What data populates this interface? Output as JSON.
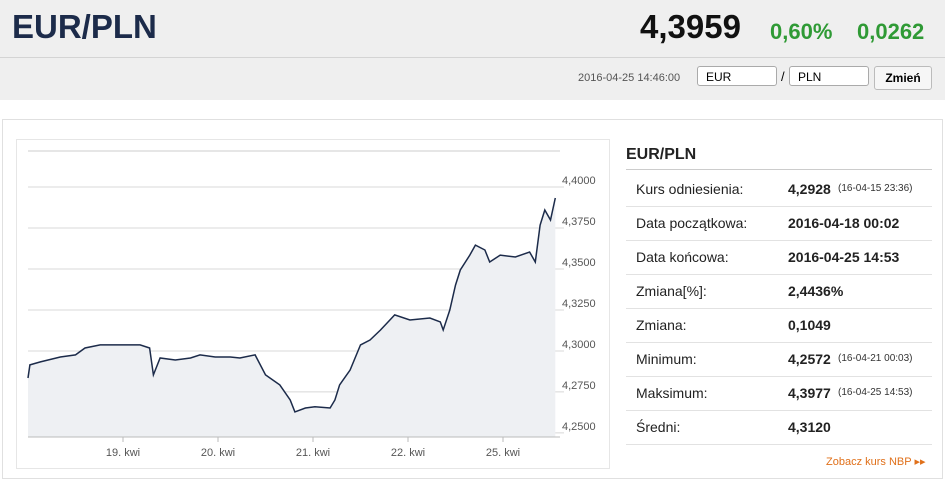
{
  "header": {
    "pair": "EUR/PLN",
    "rate": "4,3959",
    "change_pct": "0,60%",
    "change": "0,0262",
    "timestamp": "2016-04-25 14:46:00",
    "from": "EUR",
    "separator": "/",
    "to": "PLN",
    "button": "Zmień"
  },
  "chart": {
    "type": "line",
    "color": "#1c2b4a",
    "x": [
      0,
      0.02,
      0.13,
      0.34,
      0.5,
      0.6,
      0.76,
      0.97,
      1.18,
      1.28,
      1.32,
      1.39,
      1.55,
      1.71,
      1.81,
      1.97,
      2.13,
      2.23,
      2.39,
      2.5,
      2.65,
      2.76,
      2.81,
      2.92,
      3.02,
      3.18,
      3.23,
      3.28,
      3.39,
      3.5,
      3.6,
      3.71,
      3.81,
      3.86,
      4.02,
      4.23,
      4.34,
      4.37,
      4.44,
      4.5,
      4.55,
      4.65,
      4.71,
      4.81,
      4.86,
      4.97,
      5.13,
      5.28,
      5.34,
      5.39,
      5.44,
      5.5,
      5.55
    ],
    "values": [
      4.2835,
      4.2915,
      4.2933,
      4.2963,
      4.2976,
      4.3018,
      4.3037,
      4.3037,
      4.3037,
      4.3018,
      4.2854,
      4.2957,
      4.2945,
      4.2957,
      4.2976,
      4.2963,
      4.2963,
      4.2957,
      4.2976,
      4.2854,
      4.2793,
      4.2701,
      4.2628,
      4.2652,
      4.2659,
      4.2652,
      4.2701,
      4.2793,
      4.2884,
      4.3037,
      4.3067,
      4.3128,
      4.3189,
      4.322,
      4.3189,
      4.3201,
      4.3177,
      4.3128,
      4.325,
      4.3402,
      4.3494,
      4.3585,
      4.3646,
      4.3616,
      4.3543,
      4.3585,
      4.3573,
      4.3604,
      4.3543,
      4.3768,
      4.386,
      4.3799,
      4.3933
    ],
    "xlim": [
      0,
      5.6
    ],
    "ylim": [
      4.2475,
      4.422
    ],
    "xticks": [
      {
        "value": 1,
        "label": "19. kwi"
      },
      {
        "value": 2,
        "label": "20. kwi"
      },
      {
        "value": 3,
        "label": "21. kwi"
      },
      {
        "value": 4,
        "label": "22. kwi"
      },
      {
        "value": 5,
        "label": "25. kwi"
      }
    ],
    "yticks": [
      {
        "value": 4.25,
        "label": "4,2500"
      },
      {
        "value": 4.275,
        "label": "4,2750"
      },
      {
        "value": 4.3,
        "label": "4,3000"
      },
      {
        "value": 4.325,
        "label": "4,3250"
      },
      {
        "value": 4.35,
        "label": "4,3500"
      },
      {
        "value": 4.375,
        "label": "4,3750"
      },
      {
        "value": 4.4,
        "label": "4,4000"
      }
    ],
    "grid": true
  },
  "info": {
    "title": "EUR/PLN",
    "rows": [
      {
        "label": "Kurs odniesienia:",
        "value": "4,2928",
        "note": "(16-04-15 23:36)"
      },
      {
        "label": "Data początkowa:",
        "value": "2016-04-18 00:02"
      },
      {
        "label": "Data końcowa:",
        "value": "2016-04-25 14:53"
      },
      {
        "label": "Zmiana[%]:",
        "value": "2,4436%"
      },
      {
        "label": "Zmiana:",
        "value": "0,1049"
      },
      {
        "label": "Minimum:",
        "value": "4,2572",
        "note": "(16-04-21 00:03)"
      },
      {
        "label": "Maksimum:",
        "value": "4,3977",
        "note": "(16-04-25 14:53)"
      },
      {
        "label": "Średni:",
        "value": "4,3120"
      }
    ]
  },
  "link": "Zobacz kurs NBP"
}
